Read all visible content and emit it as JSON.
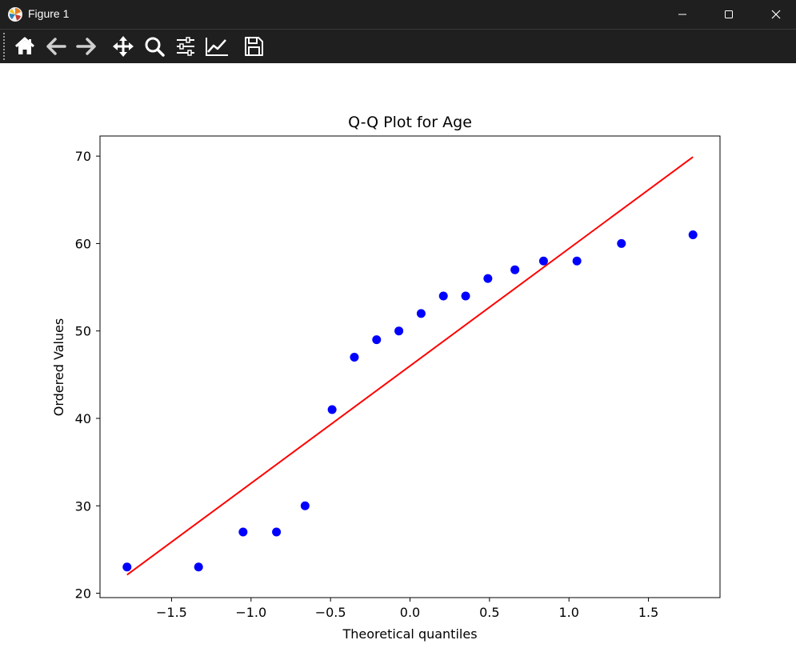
{
  "window": {
    "title": "Figure 1"
  },
  "toolbar": {
    "buttons": [
      {
        "name": "home-icon"
      },
      {
        "name": "back-arrow-icon"
      },
      {
        "name": "forward-arrow-icon"
      },
      {
        "name": "pan-move-icon"
      },
      {
        "name": "zoom-magnifier-icon"
      },
      {
        "name": "configure-subplots-icon"
      },
      {
        "name": "edit-axis-icon"
      },
      {
        "name": "save-floppy-icon"
      }
    ]
  },
  "chart_data": {
    "type": "scatter",
    "title": "Q-Q Plot for Age",
    "xlabel": "Theoretical quantiles",
    "ylabel": "Ordered Values",
    "xlim": [
      -1.95,
      1.95
    ],
    "ylim": [
      19.5,
      72.3
    ],
    "xticks": [
      -1.5,
      -1.0,
      -0.5,
      0.0,
      0.5,
      1.0,
      1.5
    ],
    "xtick_labels": [
      "−1.5",
      "−1.0",
      "−0.5",
      "0.0",
      "0.5",
      "1.0",
      "1.5"
    ],
    "yticks": [
      20,
      30,
      40,
      50,
      60,
      70
    ],
    "ytick_labels": [
      "20",
      "30",
      "40",
      "50",
      "60",
      "70"
    ],
    "grid": false,
    "series": [
      {
        "kind": "points",
        "color": "#0000ff",
        "x": [
          -1.78,
          -1.33,
          -1.05,
          -0.84,
          -0.66,
          -0.49,
          -0.35,
          -0.21,
          -0.07,
          0.07,
          0.21,
          0.35,
          0.49,
          0.66,
          0.84,
          1.05,
          1.33,
          1.78
        ],
        "y": [
          23,
          23,
          27,
          27,
          30,
          41,
          47,
          49,
          50,
          52,
          54,
          54,
          56,
          57,
          58,
          58,
          60,
          61
        ]
      },
      {
        "kind": "fit-line",
        "color": "#ff0000",
        "x": [
          -1.78,
          1.78
        ],
        "y": [
          22.1,
          69.9
        ]
      }
    ]
  }
}
